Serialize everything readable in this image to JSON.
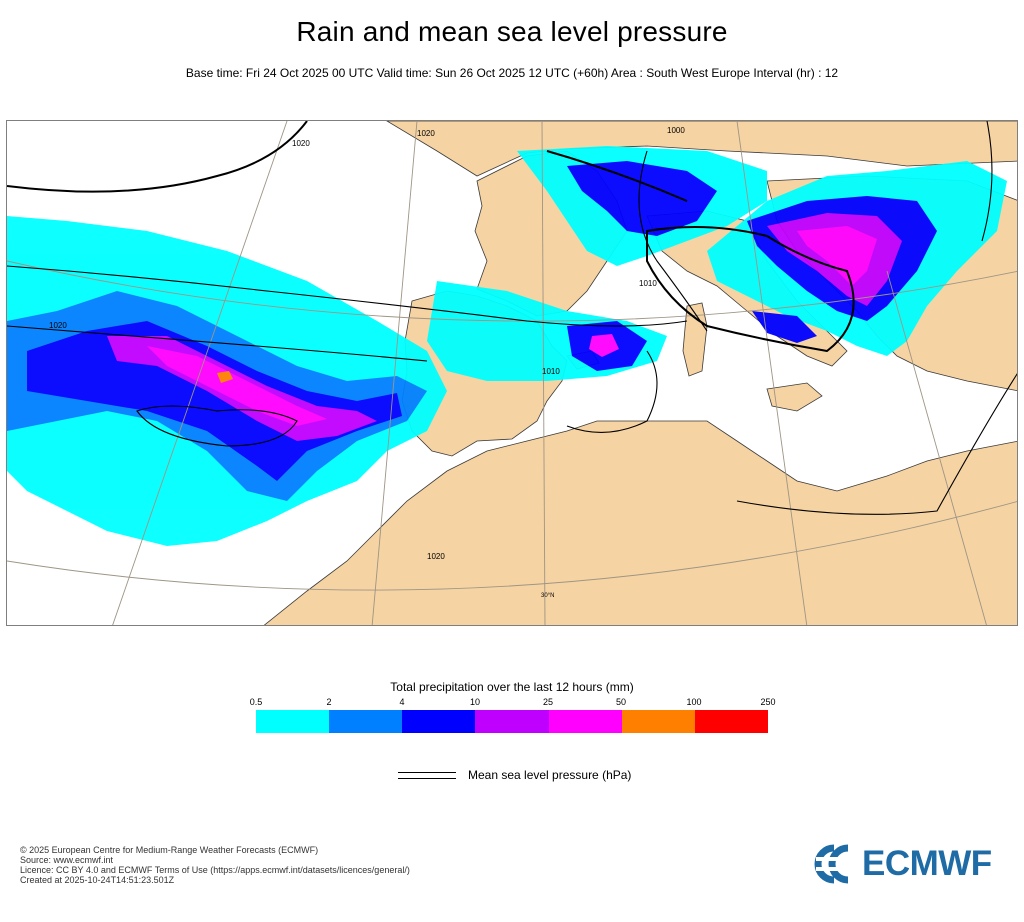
{
  "header": {
    "title": "Rain and mean sea level pressure",
    "subtitle": "Base time: Fri 24 Oct 2025 00 UTC Valid time: Sun 26 Oct 2025 12 UTC (+60h) Area : South West Europe Interval (hr) : 12"
  },
  "map": {
    "region": "South West Europe",
    "contour_labels": [
      "1020",
      "1020",
      "1020",
      "1010",
      "1000",
      "1010",
      "1020"
    ],
    "latitude_label": "30°N",
    "colors": {
      "land": "#f5d3a3",
      "sea": "#ffffff",
      "isobar": "#000000",
      "coastline": "#3a3a3a",
      "graticule": "#9e9585"
    }
  },
  "legend": {
    "precip_title": "Total precipitation over the last 12 hours (mm)",
    "ticks": [
      "0.5",
      "2",
      "4",
      "10",
      "25",
      "50",
      "100",
      "250"
    ],
    "colors": [
      "#00ffff",
      "#0080ff",
      "#0000ff",
      "#c000ff",
      "#ff00ff",
      "#ff8000",
      "#ff0000"
    ],
    "msl_label": "Mean sea level pressure (hPa)"
  },
  "credits": [
    "© 2025 European Centre for Medium-Range Weather Forecasts (ECMWF)",
    "Source: www.ecmwf.int",
    "Licence: CC BY 4.0 and ECMWF Terms of Use (https://apps.ecmwf.int/datasets/licences/general/)",
    "Created at 2025-10-24T14:51:23.501Z"
  ],
  "logo": {
    "text": "ECMWF",
    "color": "#1f6ba6"
  }
}
